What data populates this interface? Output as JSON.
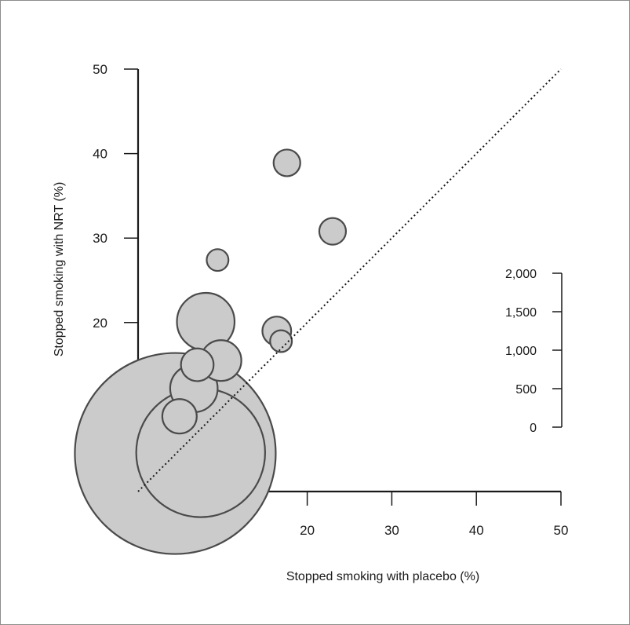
{
  "chart_data": {
    "type": "scatter",
    "title": "",
    "xlabel": "Stopped smoking with placebo (%)",
    "ylabel": "Stopped smoking with NRT (%)",
    "xlim": [
      0,
      50
    ],
    "ylim": [
      0,
      50
    ],
    "x_ticks": [
      "0",
      "10",
      "20",
      "30",
      "40",
      "50"
    ],
    "y_ticks": [
      "0",
      "10",
      "20",
      "30",
      "40",
      "50"
    ],
    "grid": false,
    "reference_line": "y = x (dotted)",
    "marker_color": "#cbcbcb",
    "marker_edge_color": "#4a4a4a",
    "size_legend": {
      "label_values": [
        "2,000",
        "1,500",
        "1,000",
        "500",
        "0"
      ],
      "range": [
        0,
        2000
      ]
    },
    "points": [
      {
        "x": 17.6,
        "y": 38.9,
        "size": 30
      },
      {
        "x": 23.0,
        "y": 30.8,
        "size": 30
      },
      {
        "x": 9.4,
        "y": 27.4,
        "size": 20
      },
      {
        "x": 8.0,
        "y": 20.1,
        "size": 140
      },
      {
        "x": 16.4,
        "y": 19.0,
        "size": 35
      },
      {
        "x": 16.9,
        "y": 17.8,
        "size": 20
      },
      {
        "x": 9.8,
        "y": 15.5,
        "size": 70
      },
      {
        "x": 7.0,
        "y": 15.0,
        "size": 45
      },
      {
        "x": 6.6,
        "y": 12.2,
        "size": 95
      },
      {
        "x": 4.9,
        "y": 8.9,
        "size": 50
      },
      {
        "x": 7.4,
        "y": 4.6,
        "size": 700
      },
      {
        "x": 4.4,
        "y": 4.5,
        "size": 1700
      }
    ]
  }
}
